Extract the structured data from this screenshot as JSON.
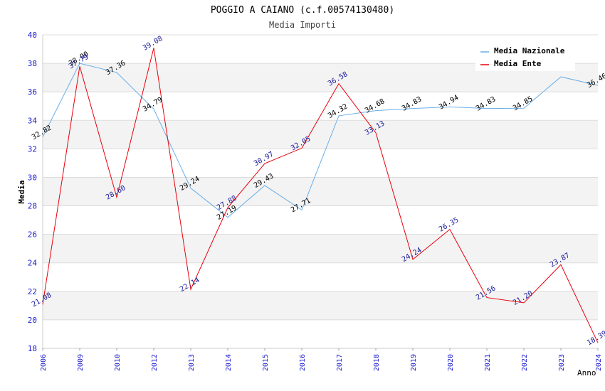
{
  "chart_data": {
    "type": "line",
    "title": "POGGIO A CAIANO (c.f.00574130480)",
    "subtitle": "Media Importi",
    "xlabel": "Anno",
    "ylabel": "Media",
    "ylim": [
      18,
      40
    ],
    "yticks": [
      18,
      20,
      22,
      24,
      26,
      28,
      30,
      32,
      34,
      36,
      38,
      40
    ],
    "grid": true,
    "legend_position": "top-right",
    "categories": [
      "2006",
      "2009",
      "2010",
      "2012",
      "2013",
      "2014",
      "2015",
      "2016",
      "2017",
      "2018",
      "2019",
      "2020",
      "2021",
      "2022",
      "2023",
      "2024"
    ],
    "series": [
      {
        "name": "Media Nazionale",
        "color": "#6aaee8",
        "values": [
          32.82,
          38.0,
          37.36,
          34.79,
          29.24,
          27.19,
          29.43,
          27.71,
          34.32,
          34.68,
          34.83,
          34.94,
          34.83,
          34.85,
          37.05,
          36.46
        ],
        "labels": [
          "32.82",
          "38.00",
          "37.36",
          "34.79",
          "29.24",
          "27.19",
          "29.43",
          "27.71",
          "34.32",
          "34.68",
          "34.83",
          "34.94",
          "34.83",
          "34.85",
          "",
          "36.46"
        ]
      },
      {
        "name": "Media Ente",
        "color": "#e8000b",
        "values": [
          21.08,
          37.79,
          28.6,
          39.08,
          22.14,
          27.88,
          30.97,
          32.05,
          36.58,
          33.13,
          24.24,
          26.35,
          21.56,
          21.2,
          23.87,
          18.39
        ],
        "labels": [
          "21.08",
          "37.79",
          "28.60",
          "39.08",
          "22.14",
          "27.88",
          "30.97",
          "32.05",
          "36.58",
          "33.13",
          "24.24",
          "26.35",
          "21.56",
          "21.20",
          "23.87",
          "18.39"
        ]
      }
    ]
  }
}
